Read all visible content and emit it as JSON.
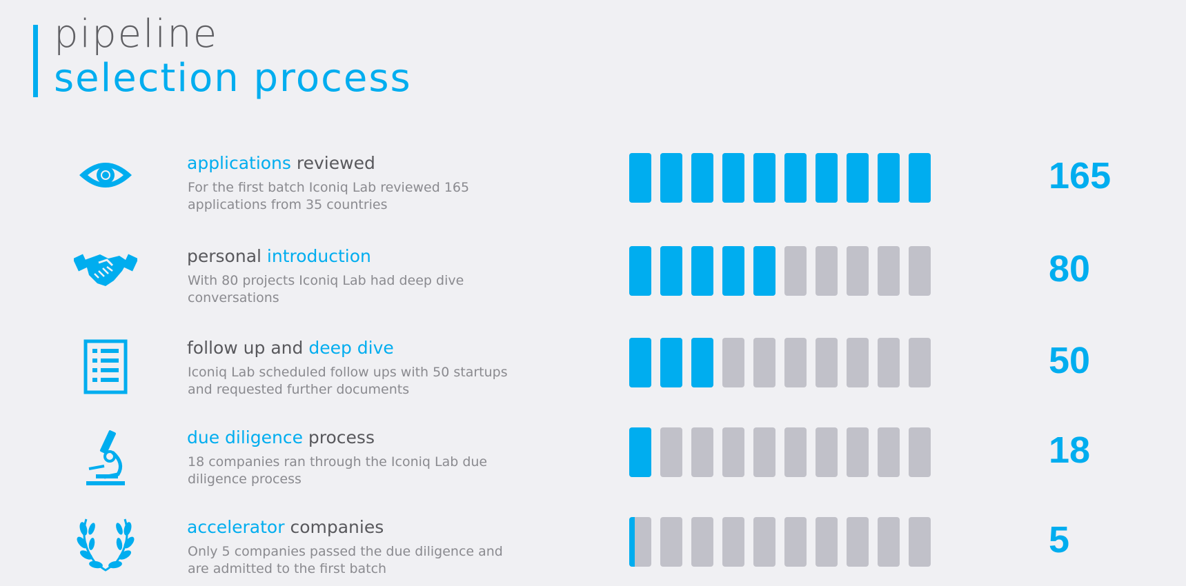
{
  "header": {
    "title_line1": "pipeline",
    "title_line2": "selection process"
  },
  "colors": {
    "accent": "#00adef",
    "inactive_block": "#c1c1c9",
    "heading_text": "#58585c",
    "description_text": "#8a8a8f",
    "background": "#f0f0f3"
  },
  "blocks_per_row": 10,
  "stages": [
    {
      "icon": "eye-icon",
      "heading_highlight": "applications",
      "heading_plain": " reviewed",
      "highlight_first": true,
      "description": "For the first batch Iconiq Lab reviewed 165 applications from 35 countries",
      "count": "165",
      "filled_blocks": 10
    },
    {
      "icon": "handshake-icon",
      "heading_plain": "personal ",
      "heading_highlight": "introduction",
      "highlight_first": false,
      "description": "With 80 projects Iconiq Lab had deep dive conversations",
      "count": "80",
      "filled_blocks": 5
    },
    {
      "icon": "checklist-icon",
      "heading_plain": "follow up and ",
      "heading_highlight": "deep dive",
      "highlight_first": false,
      "description": "Iconiq Lab scheduled follow ups with 50 startups and requested further documents",
      "count": "50",
      "filled_blocks": 3
    },
    {
      "icon": "microscope-icon",
      "heading_highlight": "due diligence",
      "heading_plain": " process",
      "highlight_first": true,
      "description": "18 companies ran through the Iconiq Lab due diligence process",
      "count": "18",
      "filled_blocks": 1
    },
    {
      "icon": "laurel-wreath-icon",
      "heading_highlight": "accelerator",
      "heading_plain": " companies",
      "highlight_first": true,
      "description": "Only 5 companies passed the due diligence and are admitted to the first batch",
      "count": "5",
      "filled_blocks": 0.25
    }
  ]
}
